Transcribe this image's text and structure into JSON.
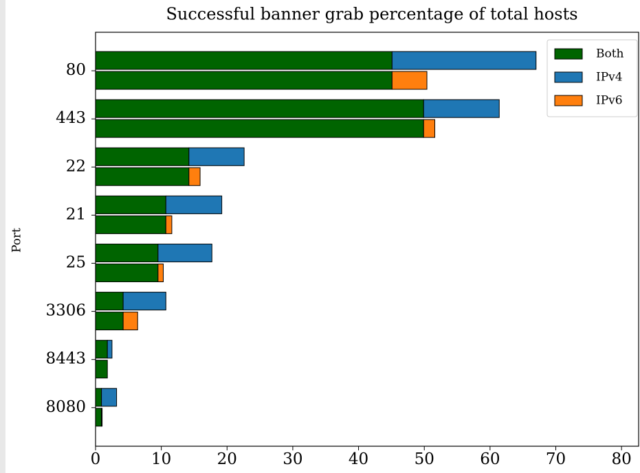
{
  "chart_data": {
    "type": "paired-stacked-barh",
    "title": "Successful banner grab percentage of total hosts",
    "ylabel": "Port",
    "categories": [
      "80",
      "443",
      "22",
      "21",
      "25",
      "3306",
      "8443",
      "8080"
    ],
    "series": [
      {
        "name": "Both",
        "color": "#006400",
        "values": [
          45.1,
          49.9,
          14.2,
          10.7,
          9.5,
          4.2,
          1.8,
          0.9
        ]
      },
      {
        "name": "IPv4",
        "color": "#1f77b4",
        "values": [
          21.9,
          11.5,
          8.4,
          8.5,
          8.2,
          6.5,
          0.7,
          2.3
        ]
      },
      {
        "name": "IPv6",
        "color": "#ff7f0e",
        "values": [
          5.3,
          1.7,
          1.7,
          0.9,
          0.8,
          2.2,
          0,
          0.1
        ]
      }
    ],
    "xlim": [
      0,
      82.6
    ],
    "xticks": [
      0,
      10,
      20,
      30,
      40,
      50,
      60,
      70,
      80
    ],
    "legend": "upper right",
    "grid": false
  }
}
